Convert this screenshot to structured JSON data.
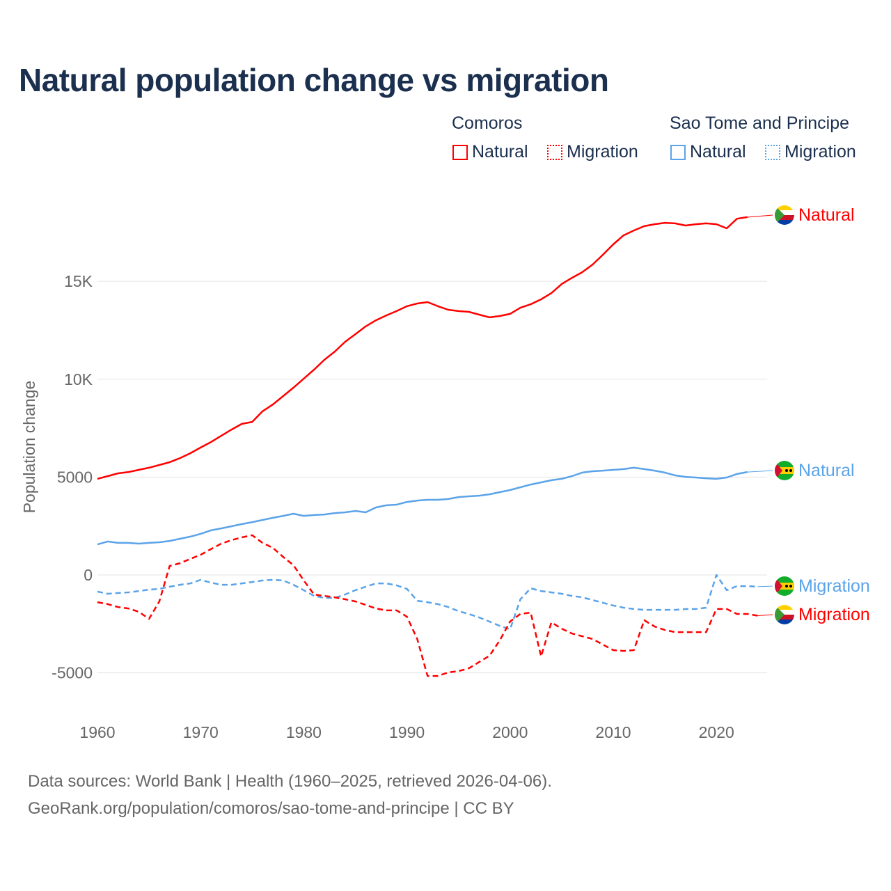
{
  "title": "Natural population change vs migration",
  "legend": {
    "groups": [
      {
        "name": "Comoros",
        "items": [
          "Natural",
          "Migration"
        ],
        "color": "#ff0000"
      },
      {
        "name": "Sao Tome and Principe",
        "items": [
          "Natural",
          "Migration"
        ],
        "color": "#5ba3e8"
      }
    ]
  },
  "footer": {
    "line1": "Data sources: World Bank | Health (1960–2025, retrieved 2026-04-06).",
    "line2": "GeoRank.org/population/comoros/sao-tome-and-principe | CC BY"
  },
  "chart_data": {
    "type": "line",
    "title": "Natural population change vs migration",
    "xlabel": "",
    "ylabel": "Population change",
    "xlim": [
      1960,
      2025
    ],
    "ylim": [
      -6000,
      20000
    ],
    "x_ticks": [
      1960,
      1970,
      1980,
      1990,
      2000,
      2010,
      2020
    ],
    "y_ticks": [
      {
        "v": -5000,
        "label": "-5000"
      },
      {
        "v": 0,
        "label": "0"
      },
      {
        "v": 5000,
        "label": "5000"
      },
      {
        "v": 10000,
        "label": "10K"
      },
      {
        "v": 15000,
        "label": "15K"
      }
    ],
    "grid": true,
    "x_start": 1960,
    "series": [
      {
        "name": "Comoros Natural",
        "end_label": "Natural",
        "country": "Comoros",
        "color": "#ff0000",
        "dash": false,
        "values": [
          4910,
          5050,
          5190,
          5260,
          5370,
          5480,
          5620,
          5760,
          5970,
          6220,
          6510,
          6790,
          7110,
          7430,
          7720,
          7820,
          8360,
          8710,
          9140,
          9570,
          10030,
          10490,
          10990,
          11410,
          11910,
          12300,
          12700,
          13010,
          13260,
          13480,
          13730,
          13870,
          13940,
          13730,
          13550,
          13480,
          13440,
          13300,
          13160,
          13230,
          13340,
          13650,
          13830,
          14080,
          14400,
          14860,
          15180,
          15470,
          15860,
          16360,
          16890,
          17350,
          17600,
          17820,
          17920,
          17990,
          17960,
          17850,
          17920,
          17960,
          17920,
          17710,
          18200,
          18280
        ]
      },
      {
        "name": "Sao Tome and Principe Natural",
        "end_label": "Natural",
        "country": "Sao Tome and Principe",
        "color": "#5ba3e8",
        "dash": false,
        "values": [
          1560,
          1710,
          1640,
          1640,
          1600,
          1640,
          1670,
          1740,
          1850,
          1960,
          2100,
          2280,
          2380,
          2490,
          2600,
          2700,
          2810,
          2920,
          3020,
          3130,
          3020,
          3060,
          3090,
          3160,
          3200,
          3270,
          3200,
          3450,
          3560,
          3590,
          3730,
          3800,
          3840,
          3840,
          3880,
          3980,
          4020,
          4050,
          4120,
          4230,
          4340,
          4480,
          4620,
          4730,
          4840,
          4910,
          5050,
          5230,
          5300,
          5330,
          5370,
          5410,
          5480,
          5410,
          5330,
          5230,
          5090,
          5010,
          4980,
          4940,
          4910,
          4980,
          5160,
          5260
        ]
      },
      {
        "name": "Sao Tome and Principe Migration",
        "end_label": "Migration",
        "country": "Sao Tome and Principe",
        "color": "#5ba3e8",
        "dash": true,
        "values": [
          -850,
          -960,
          -920,
          -890,
          -820,
          -750,
          -710,
          -600,
          -500,
          -430,
          -250,
          -390,
          -500,
          -500,
          -430,
          -360,
          -280,
          -250,
          -280,
          -500,
          -780,
          -1070,
          -1170,
          -1170,
          -1000,
          -780,
          -600,
          -430,
          -430,
          -530,
          -710,
          -1320,
          -1390,
          -1490,
          -1640,
          -1850,
          -1990,
          -2170,
          -2380,
          -2600,
          -2770,
          -1240,
          -680,
          -820,
          -890,
          -960,
          -1070,
          -1140,
          -1280,
          -1420,
          -1560,
          -1670,
          -1740,
          -1780,
          -1780,
          -1780,
          -1780,
          -1740,
          -1740,
          -1670,
          0,
          -780,
          -570,
          -570,
          -600
        ]
      },
      {
        "name": "Comoros Migration",
        "end_label": "Migration",
        "country": "Comoros",
        "color": "#ff0000",
        "dash": true,
        "values": [
          -1390,
          -1490,
          -1640,
          -1710,
          -1880,
          -2240,
          -1350,
          460,
          600,
          820,
          1030,
          1320,
          1600,
          1780,
          1920,
          2030,
          1640,
          1390,
          920,
          500,
          -280,
          -1000,
          -1070,
          -1140,
          -1240,
          -1350,
          -1530,
          -1710,
          -1810,
          -1810,
          -2130,
          -3270,
          -5160,
          -5160,
          -4980,
          -4910,
          -4770,
          -4450,
          -4130,
          -3340,
          -2380,
          -1990,
          -1920,
          -4160,
          -2420,
          -2740,
          -2990,
          -3130,
          -3270,
          -3560,
          -3840,
          -3880,
          -3840,
          -2310,
          -2630,
          -2810,
          -2920,
          -2920,
          -2920,
          -2920,
          -1740,
          -1740,
          -1990,
          -1990,
          -2080
        ]
      }
    ]
  }
}
